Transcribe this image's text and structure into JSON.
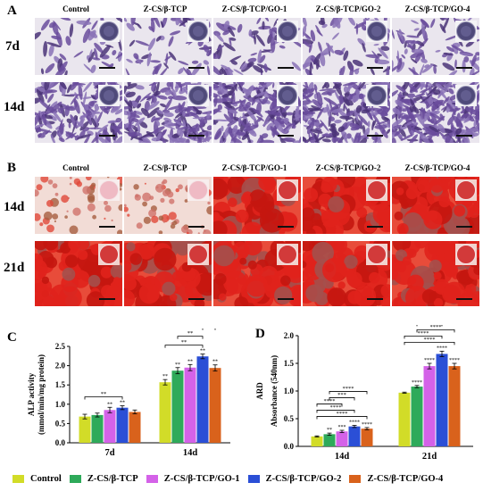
{
  "panels": {
    "A": {
      "letter": "A",
      "columns": [
        "Control",
        "Z-CS/β-TCP",
        "Z-CS/β-TCP/GO-1",
        "Z-CS/β-TCP/GO-2",
        "Z-CS/β-TCP/GO-4"
      ],
      "rows": [
        "7d",
        "14d"
      ]
    },
    "B": {
      "letter": "B",
      "columns": [
        "Control",
        "Z-CS/β-TCP",
        "Z-CS/β-TCP/GO-1",
        "Z-CS/β-TCP/GO-2",
        "Z-CS/β-TCP/GO-4"
      ],
      "rows": [
        "14d",
        "21d"
      ]
    }
  },
  "chart_data": [
    {
      "panel": "C",
      "type": "bar",
      "ylabel": "ALP activity (mmol/min/mg protein)",
      "ylabel_lines": [
        "ALP activity",
        "(mmol/min/mg protein)"
      ],
      "categories": [
        "7d",
        "14d"
      ],
      "ylim": [
        0,
        2.5
      ],
      "yticks": [
        "0.0",
        "0.5",
        "1.0",
        "1.5",
        "2.0",
        "2.5"
      ],
      "series": [
        {
          "name": "Control",
          "values": [
            0.68,
            1.57
          ],
          "errors": [
            0.06,
            0.07
          ]
        },
        {
          "name": "Z-CS/β-TCP",
          "values": [
            0.72,
            1.87
          ],
          "errors": [
            0.05,
            0.08
          ]
        },
        {
          "name": "Z-CS/β-TCP/GO-1",
          "values": [
            0.85,
            1.95
          ],
          "errors": [
            0.07,
            0.08
          ]
        },
        {
          "name": "Z-CS/β-TCP/GO-2",
          "values": [
            0.91,
            2.24
          ],
          "errors": [
            0.05,
            0.06
          ]
        },
        {
          "name": "Z-CS/β-TCP/GO-4",
          "values": [
            0.8,
            1.94
          ],
          "errors": [
            0.05,
            0.08
          ]
        }
      ],
      "bar_labels": [
        [
          "",
          "",
          "**",
          "**",
          ""
        ],
        [
          "**",
          "**",
          "**",
          "**",
          "**"
        ]
      ],
      "brackets": [
        {
          "group": 0,
          "from": 0,
          "to": 3,
          "label": "**"
        },
        {
          "group": 1,
          "from": 0,
          "to": 3,
          "label": "**"
        },
        {
          "group": 1,
          "from": 1,
          "to": 3,
          "label": "**"
        },
        {
          "group": 1,
          "from": 3,
          "to": 4,
          "label": "**"
        }
      ]
    },
    {
      "panel": "D",
      "type": "bar",
      "title": "ARD",
      "ylabel": "Absorbance (540nm)",
      "categories": [
        "14d",
        "21d"
      ],
      "ylim": [
        0,
        2.0
      ],
      "yticks": [
        "0.0",
        "0.5",
        "1.0",
        "1.5",
        "2.0"
      ],
      "series": [
        {
          "name": "Control",
          "values": [
            0.18,
            0.97
          ],
          "errors": [
            0.01,
            0.01
          ]
        },
        {
          "name": "Z-CS/β-TCP",
          "values": [
            0.22,
            1.08
          ],
          "errors": [
            0.02,
            0.02
          ]
        },
        {
          "name": "Z-CS/β-TCP/GO-1",
          "values": [
            0.27,
            1.45
          ],
          "errors": [
            0.02,
            0.05
          ]
        },
        {
          "name": "Z-CS/β-TCP/GO-2",
          "values": [
            0.36,
            1.67
          ],
          "errors": [
            0.02,
            0.05
          ]
        },
        {
          "name": "Z-CS/β-TCP/GO-4",
          "values": [
            0.32,
            1.45
          ],
          "errors": [
            0.02,
            0.05
          ]
        }
      ],
      "bar_labels": [
        [
          "",
          "**",
          "***",
          "****",
          "****"
        ],
        [
          "",
          "****",
          "****",
          "****",
          "****"
        ]
      ],
      "brackets": [
        {
          "group": 0,
          "from": 0,
          "to": 4,
          "label": "****"
        },
        {
          "group": 0,
          "from": 0,
          "to": 3,
          "label": "****"
        },
        {
          "group": 0,
          "from": 0,
          "to": 2,
          "label": "****"
        },
        {
          "group": 0,
          "from": 1,
          "to": 3,
          "label": "***"
        },
        {
          "group": 0,
          "from": 1,
          "to": 4,
          "label": "****"
        },
        {
          "group": 1,
          "from": 0,
          "to": 4,
          "label": "****"
        },
        {
          "group": 1,
          "from": 0,
          "to": 3,
          "label": "****"
        },
        {
          "group": 1,
          "from": 1,
          "to": 4,
          "label": "****"
        },
        {
          "group": 1,
          "from": 1,
          "to": 3,
          "label": "****"
        },
        {
          "group": 1,
          "from": 2,
          "to": 3,
          "label": "**"
        },
        {
          "group": 1,
          "from": 3,
          "to": 4,
          "label": "*"
        }
      ]
    }
  ],
  "legend": {
    "items": [
      {
        "label": "Control",
        "color": "#d2dc28"
      },
      {
        "label": "Z-CS/β-TCP",
        "color": "#2eaa5a"
      },
      {
        "label": "Z-CS/β-TCP/GO-1",
        "color": "#d462e8"
      },
      {
        "label": "Z-CS/β-TCP/GO-2",
        "color": "#2b4fd6"
      },
      {
        "label": "Z-CS/β-TCP/GO-4",
        "color": "#d9621c"
      }
    ]
  },
  "panel_letters": {
    "C": "C",
    "D": "D"
  },
  "colors": {
    "stain_alp": "#6a4c9c",
    "stain_ars": "#e0221c"
  }
}
